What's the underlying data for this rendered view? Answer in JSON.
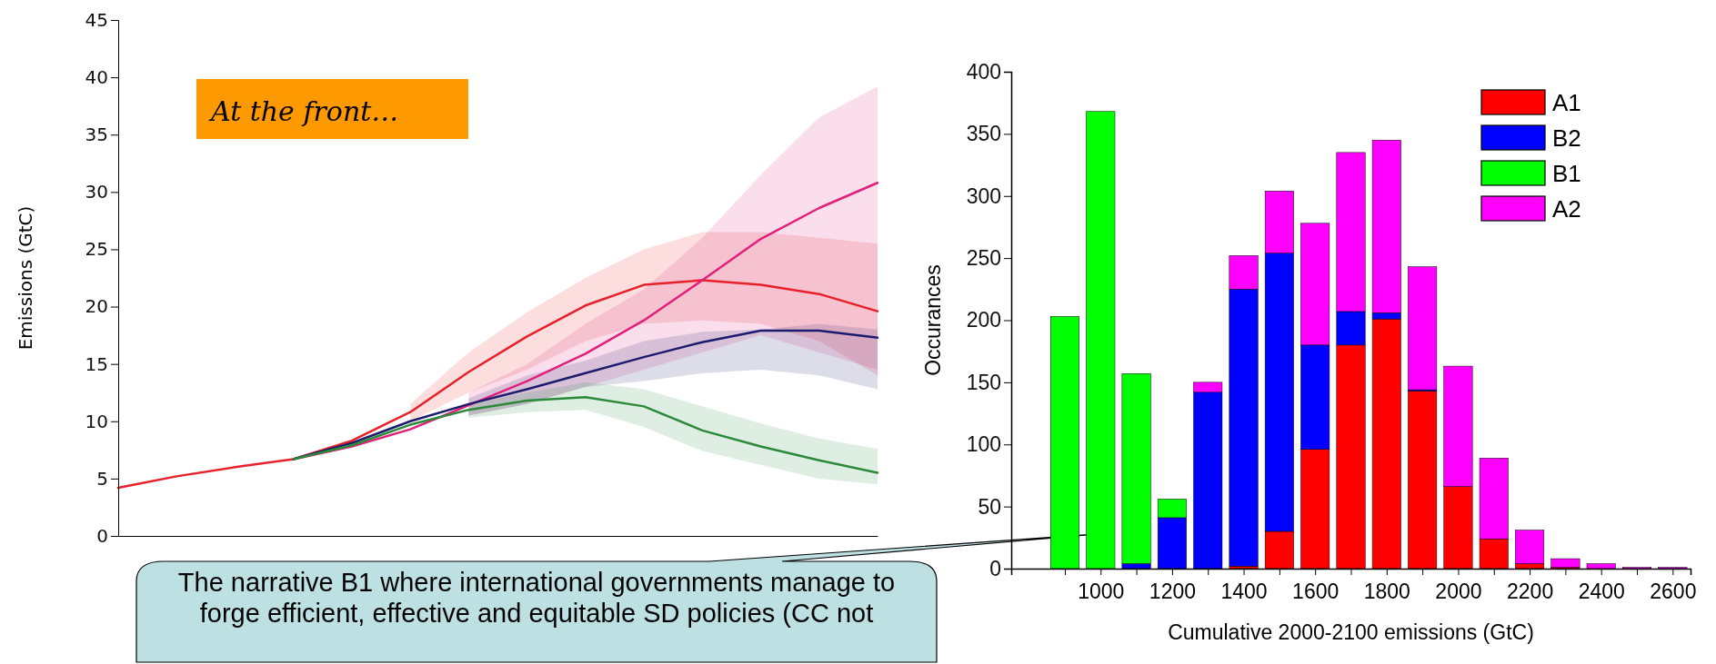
{
  "chart_data": [
    {
      "type": "line",
      "ylabel": "Emissions (GtC)",
      "categories": [
        null,
        null,
        null,
        null,
        null,
        null,
        null,
        null,
        null,
        null,
        null,
        null,
        null,
        null
      ],
      "series": [
        {
          "color": "#e8202a",
          "values": [
            4.2,
            5.2,
            6.0,
            6.7,
            8.3,
            10.8,
            14.3,
            17.4,
            20.1,
            21.9,
            22.3,
            21.9,
            21.1,
            19.6
          ],
          "lower": [
            null,
            null,
            null,
            null,
            null,
            10,
            12.5,
            14.5,
            17,
            18.5,
            18.8,
            18.5,
            17,
            14
          ],
          "upper": [
            null,
            null,
            null,
            null,
            null,
            11.5,
            16,
            19.5,
            22.5,
            25,
            26.5,
            26.5,
            26,
            25.5
          ]
        },
        {
          "color": "#e0207a",
          "values": [
            null,
            null,
            null,
            6.7,
            7.8,
            9.3,
            11.4,
            13.5,
            15.9,
            18.8,
            22.3,
            25.9,
            28.6,
            30.8
          ],
          "lower": [
            null,
            null,
            null,
            null,
            null,
            null,
            10.5,
            11.5,
            13,
            14.5,
            16,
            17.5,
            16,
            14.5
          ],
          "upper": [
            null,
            null,
            null,
            null,
            null,
            null,
            12.5,
            15,
            18.5,
            21.5,
            26,
            31.5,
            36.5,
            39.2
          ]
        },
        {
          "color": "#1c1c6e",
          "values": [
            null,
            null,
            null,
            6.7,
            8.1,
            10.0,
            11.5,
            12.8,
            14.2,
            15.6,
            16.9,
            17.9,
            17.9,
            17.3
          ],
          "lower": [
            null,
            null,
            null,
            null,
            null,
            null,
            10.5,
            11.5,
            13,
            13.5,
            14.2,
            14.5,
            14,
            12.8
          ],
          "upper": [
            null,
            null,
            null,
            null,
            null,
            null,
            12,
            14,
            15.3,
            17,
            17.8,
            18,
            18.5,
            18
          ]
        },
        {
          "color": "#2a8a3a",
          "values": [
            null,
            null,
            null,
            6.7,
            7.9,
            9.7,
            11.0,
            11.8,
            12.1,
            11.3,
            9.2,
            7.8,
            6.6,
            5.5
          ],
          "lower": [
            null,
            null,
            null,
            null,
            null,
            null,
            10.3,
            10.8,
            11,
            9.5,
            7.4,
            6.2,
            5,
            4.5
          ],
          "upper": [
            null,
            null,
            null,
            null,
            null,
            null,
            11.5,
            12.5,
            13.4,
            12.8,
            11.3,
            9.8,
            8.5,
            7.6
          ]
        }
      ],
      "ylim": [
        0,
        45
      ],
      "yticks": [
        0,
        5,
        10,
        15,
        20,
        25,
        30,
        35,
        40,
        45
      ],
      "tick_labels": "y",
      "grid": false,
      "annotations": [
        "At the front…",
        "The narrative B1 where international governments manage to forge efficient, effective and equitable SD policies (CC not"
      ]
    },
    {
      "type": "bar",
      "stacked": true,
      "xlabel": "Cumulative 2000-2100 emissions (GtC)",
      "ylabel": "Occurances",
      "x": [
        900,
        1000,
        1100,
        1200,
        1300,
        1400,
        1500,
        1600,
        1700,
        1800,
        1900,
        2000,
        2100,
        2200,
        2300,
        2400,
        2500,
        2600
      ],
      "series": [
        {
          "name": "A1",
          "color": "#ff0000",
          "values": [
            null,
            null,
            null,
            null,
            null,
            2,
            30,
            96,
            180,
            201,
            143,
            66,
            24,
            4,
            1,
            null,
            null,
            null
          ]
        },
        {
          "name": "B2",
          "color": "#0000ff",
          "values": [
            null,
            null,
            4,
            41,
            142,
            223,
            224,
            84,
            27,
            5,
            1,
            null,
            null,
            null,
            null,
            null,
            null,
            null
          ]
        },
        {
          "name": "B1",
          "color": "#00ff00",
          "values": [
            203,
            368,
            153,
            15,
            null,
            null,
            null,
            null,
            null,
            null,
            null,
            null,
            null,
            null,
            null,
            null,
            null,
            null
          ]
        },
        {
          "name": "A2",
          "color": "#ff00ff",
          "values": [
            null,
            null,
            null,
            null,
            8,
            27,
            50,
            98,
            128,
            139,
            99,
            97,
            65,
            27,
            7,
            4,
            1,
            1
          ]
        }
      ],
      "xlim": [
        750,
        2650
      ],
      "xticks": [
        {
          "value": 900,
          "label": null
        },
        1000,
        {
          "value": 1100,
          "label": null
        },
        1200,
        {
          "value": 1300,
          "label": null
        },
        1400,
        {
          "value": 1500,
          "label": null
        },
        1600,
        {
          "value": 1700,
          "label": null
        },
        1800,
        {
          "value": 1900,
          "label": null
        },
        2000,
        {
          "value": 2100,
          "label": null
        },
        2200,
        {
          "value": 2300,
          "label": null
        },
        2400,
        {
          "value": 2500,
          "label": null
        },
        2600
      ],
      "ylim": [
        0,
        400
      ],
      "yticks": [
        0,
        50,
        100,
        150,
        200,
        250,
        300,
        350,
        400
      ],
      "grid": false,
      "legend": "top right"
    }
  ]
}
